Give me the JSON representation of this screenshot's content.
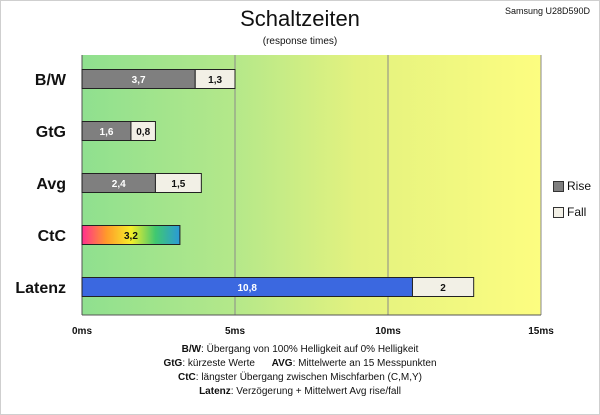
{
  "header": {
    "title": "Schaltzeiten",
    "subtitle": "(response times)",
    "model": "Samsung U28D590D"
  },
  "legend": [
    {
      "name": "Rise",
      "color": "#7f7f7f"
    },
    {
      "name": "Fall",
      "color": "#f2f0e6"
    }
  ],
  "notes": [
    {
      "key": "B/W",
      "text": ":  Übergang von 100% Helligkeit auf 0% Helligkeit"
    },
    {
      "key": "GtG",
      "text": ": kürzeste  Werte",
      "key2": "AVG",
      "text2": ": Mittelwerte  an 15 Messpunkten"
    },
    {
      "key": "CtC",
      "text": ": längster Übergang  zwischen Mischfarben  (C,M,Y)"
    },
    {
      "key": "Latenz",
      "text": ": Verzögerung  + Mittelwert  Avg rise/fall"
    }
  ],
  "chart_data": {
    "type": "bar",
    "orientation": "horizontal",
    "stacked": true,
    "categories": [
      "B/W",
      "GtG",
      "Avg",
      "CtC",
      "Latenz"
    ],
    "series": [
      {
        "name": "Rise",
        "values": [
          3.7,
          1.6,
          2.4,
          3.2,
          10.8
        ],
        "labels": [
          "3,7",
          "1,6",
          "2,4",
          "3,2",
          "10,8"
        ]
      },
      {
        "name": "Fall",
        "values": [
          1.3,
          0.8,
          1.5,
          null,
          2
        ],
        "labels": [
          "1,3",
          "0,8",
          "1,5",
          "",
          "2"
        ]
      }
    ],
    "special_colors": {
      "CtC": "rainbow",
      "Latenz_rise": "#3b68e0"
    },
    "xlim": [
      0,
      15
    ],
    "xticks": [
      "0ms",
      "5ms",
      "10ms",
      "15ms"
    ],
    "xtick_values": [
      0,
      5,
      10,
      15
    ],
    "background": "gradient green to yellow",
    "grid": true,
    "legend_position": "right"
  }
}
